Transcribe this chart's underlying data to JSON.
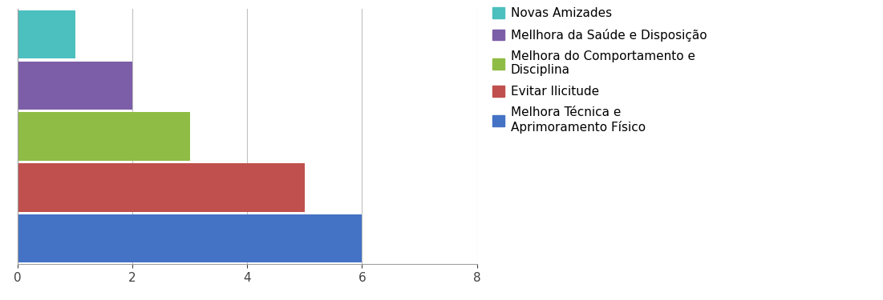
{
  "categories": [
    "Novas Amizades",
    "Mellhora da Saúde e Disposição",
    "Melhora do Comportamento e\nDisciplina",
    "Evitar Ilicitude",
    "Melhora Técnica e\nAprimoramento Físico"
  ],
  "values": [
    1,
    2,
    3,
    5,
    6
  ],
  "colors": [
    "#4cbfbf",
    "#7b5ea7",
    "#8fbc45",
    "#c0504d",
    "#4472c4"
  ],
  "xlim": [
    0,
    8
  ],
  "xticks": [
    0,
    2,
    4,
    6,
    8
  ],
  "legend_labels": [
    "Novas Amizades",
    "Mellhora da Saúde e Disposição",
    "Melhora do Comportamento e\nDisciplina",
    "Evitar Ilicitude",
    "Melhora Técnica e\nAprimoramento Físico"
  ],
  "background_color": "#ffffff",
  "grid_color": "#c0c0c0",
  "bar_height": 0.95,
  "figsize": [
    11.01,
    3.75
  ],
  "dpi": 100
}
